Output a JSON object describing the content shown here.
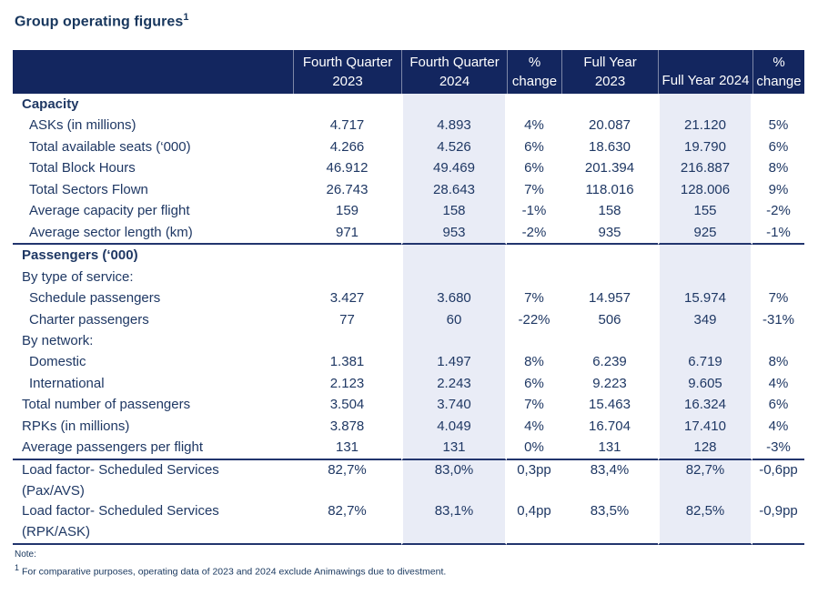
{
  "title": {
    "text": "Group operating figures",
    "superscript": "1"
  },
  "colors": {
    "header_bg": "#13265f",
    "header_text": "#ffffff",
    "body_text": "#1f3864",
    "shaded_column": "#e9ecf6",
    "divider_line": "#22356e"
  },
  "table": {
    "columns": [
      {
        "id": "label",
        "header": ""
      },
      {
        "id": "fq2023",
        "header_line1": "Fourth Quarter",
        "header_line2": "2023",
        "shaded": false
      },
      {
        "id": "fq2024",
        "header_line1": "Fourth Quarter",
        "header_line2": "2024",
        "shaded": true
      },
      {
        "id": "chg_q",
        "header_line1": "%",
        "header_line2": "change",
        "shaded": false
      },
      {
        "id": "fy2023",
        "header_line1": "Full Year",
        "header_line2": "2023",
        "shaded": false
      },
      {
        "id": "fy2024",
        "header_single": "Full Year 2024",
        "shaded": true
      },
      {
        "id": "chg_fy",
        "header_line1": "%",
        "header_line2": "change",
        "shaded": false
      }
    ],
    "rows": [
      {
        "type": "section",
        "label": "Capacity",
        "values": [
          "",
          "",
          "",
          "",
          "",
          ""
        ]
      },
      {
        "type": "data",
        "label": "ASKs (in millions)",
        "values": [
          "4.717",
          "4.893",
          "4%",
          "20.087",
          "21.120",
          "5%"
        ]
      },
      {
        "type": "data",
        "label": "Total available seats (‘000)",
        "values": [
          "4.266",
          "4.526",
          "6%",
          "18.630",
          "19.790",
          "6%"
        ]
      },
      {
        "type": "data",
        "label": "Total Block Hours",
        "values": [
          "46.912",
          "49.469",
          "6%",
          "201.394",
          "216.887",
          "8%"
        ]
      },
      {
        "type": "data",
        "label": "Total Sectors Flown",
        "values": [
          "26.743",
          "28.643",
          "7%",
          "118.016",
          "128.006",
          "9%"
        ]
      },
      {
        "type": "data",
        "label": "Average capacity per flight",
        "values": [
          "159",
          "158",
          "-1%",
          "158",
          "155",
          "-2%"
        ]
      },
      {
        "type": "data",
        "label": "Average sector length (km)",
        "values": [
          "971",
          "953",
          "-2%",
          "935",
          "925",
          "-1%"
        ],
        "divider": true
      },
      {
        "type": "section",
        "label": "Passengers (‘000)",
        "values": [
          "",
          "",
          "",
          "",
          "",
          ""
        ]
      },
      {
        "type": "subsection",
        "label": "By type of service:",
        "values": [
          "",
          "",
          "",
          "",
          "",
          ""
        ]
      },
      {
        "type": "data",
        "label": "Schedule passengers",
        "values": [
          "3.427",
          "3.680",
          "7%",
          "14.957",
          "15.974",
          "7%"
        ]
      },
      {
        "type": "data",
        "label": "Charter passengers",
        "values": [
          "77",
          "60",
          "-22%",
          "506",
          "349",
          "-31%"
        ]
      },
      {
        "type": "subsection",
        "label": "By network:",
        "values": [
          "",
          "",
          "",
          "",
          "",
          ""
        ]
      },
      {
        "type": "data",
        "label": "Domestic",
        "values": [
          "1.381",
          "1.497",
          "8%",
          "6.239",
          "6.719",
          "8%"
        ]
      },
      {
        "type": "data",
        "label": "International",
        "values": [
          "2.123",
          "2.243",
          "6%",
          "9.223",
          "9.605",
          "4%"
        ]
      },
      {
        "type": "flat",
        "label": "Total number of passengers",
        "values": [
          "3.504",
          "3.740",
          "7%",
          "15.463",
          "16.324",
          "6%"
        ]
      },
      {
        "type": "flat",
        "label": "RPKs (in millions)",
        "values": [
          "3.878",
          "4.049",
          "4%",
          "16.704",
          "17.410",
          "4%"
        ]
      },
      {
        "type": "flat",
        "label": "Average passengers per flight",
        "values": [
          "131",
          "131",
          "0%",
          "131",
          "128",
          "-3%"
        ],
        "divider": true
      },
      {
        "type": "flat2",
        "label": "Load factor- Scheduled Services",
        "label2": "(Pax/AVS)",
        "values": [
          "82,7%",
          "83,0%",
          "0,3pp",
          "83,4%",
          "82,7%",
          "-0,6pp"
        ]
      },
      {
        "type": "flat2",
        "label": "Load factor- Scheduled Services",
        "label2": "(RPK/ASK)",
        "values": [
          "82,7%",
          "83,1%",
          "0,4pp",
          "83,5%",
          "82,5%",
          "-0,9pp"
        ],
        "last": true
      }
    ]
  },
  "note": {
    "label": "Note:",
    "superscript": "1",
    "text": "For comparative purposes, operating data of 2023 and 2024 exclude Animawings due to divestment."
  }
}
